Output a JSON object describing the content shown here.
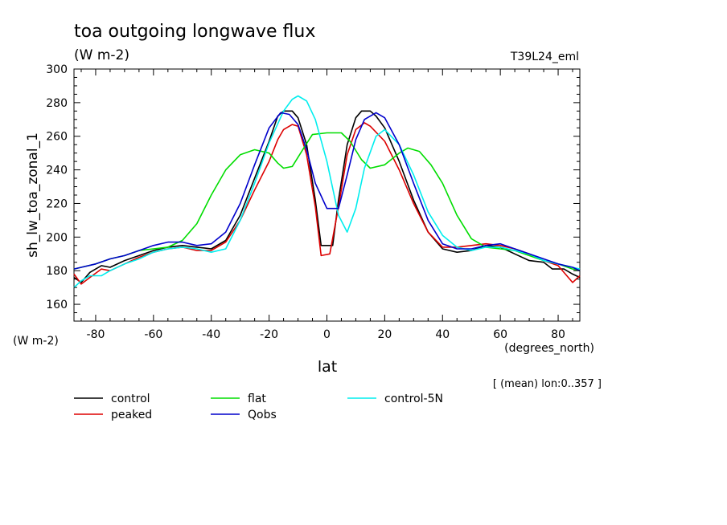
{
  "header": {
    "title": "toa outgoing longwave flux",
    "units": "(W m-2)",
    "experiment": "T39L24_eml"
  },
  "footer": {
    "mean_note": "[ (mean) lon:0..357 ]"
  },
  "chart_data": {
    "type": "line",
    "title": "toa outgoing longwave flux",
    "ylabel": "sh_lw_toa_zonal_1",
    "yunits": "(W m-2)",
    "xlabel": "lat",
    "xunits": "(degrees_north)",
    "xlim": [
      -87.5,
      87.5
    ],
    "ylim": [
      150,
      300
    ],
    "xticks": [
      -80,
      -60,
      -40,
      -20,
      0,
      20,
      40,
      60,
      80
    ],
    "yticks": [
      160,
      180,
      200,
      220,
      240,
      260,
      280,
      300
    ],
    "grid": false,
    "legend_position": "bottom",
    "series": [
      {
        "name": "control",
        "color": "#000000",
        "points": [
          [
            -87.5,
            176
          ],
          [
            -85,
            173
          ],
          [
            -82,
            179
          ],
          [
            -78,
            183
          ],
          [
            -75,
            182
          ],
          [
            -70,
            186
          ],
          [
            -65,
            189
          ],
          [
            -60,
            192
          ],
          [
            -55,
            194
          ],
          [
            -50,
            195
          ],
          [
            -45,
            194
          ],
          [
            -40,
            193
          ],
          [
            -35,
            198
          ],
          [
            -30,
            213
          ],
          [
            -25,
            235
          ],
          [
            -20,
            257
          ],
          [
            -17,
            272
          ],
          [
            -15,
            275
          ],
          [
            -12,
            275
          ],
          [
            -10,
            271
          ],
          [
            -7,
            255
          ],
          [
            -4,
            222
          ],
          [
            -2,
            195
          ],
          [
            2,
            195
          ],
          [
            4,
            222
          ],
          [
            7,
            255
          ],
          [
            10,
            271
          ],
          [
            12,
            275
          ],
          [
            15,
            275
          ],
          [
            17,
            272
          ],
          [
            20,
            265
          ],
          [
            25,
            245
          ],
          [
            30,
            222
          ],
          [
            35,
            203
          ],
          [
            40,
            193
          ],
          [
            45,
            191
          ],
          [
            50,
            192
          ],
          [
            55,
            195
          ],
          [
            60,
            194
          ],
          [
            65,
            190
          ],
          [
            70,
            186
          ],
          [
            75,
            185
          ],
          [
            78,
            181
          ],
          [
            82,
            181
          ],
          [
            85,
            178
          ],
          [
            87.5,
            176
          ]
        ]
      },
      {
        "name": "peaked",
        "color": "#dd0000",
        "points": [
          [
            -87.5,
            178
          ],
          [
            -85,
            172
          ],
          [
            -82,
            176
          ],
          [
            -78,
            181
          ],
          [
            -75,
            180
          ],
          [
            -70,
            184
          ],
          [
            -65,
            188
          ],
          [
            -60,
            191
          ],
          [
            -55,
            193
          ],
          [
            -50,
            194
          ],
          [
            -45,
            192
          ],
          [
            -40,
            192
          ],
          [
            -35,
            197
          ],
          [
            -30,
            210
          ],
          [
            -25,
            228
          ],
          [
            -20,
            245
          ],
          [
            -17,
            258
          ],
          [
            -15,
            264
          ],
          [
            -12,
            267
          ],
          [
            -10,
            266
          ],
          [
            -7,
            249
          ],
          [
            -4,
            218
          ],
          [
            -2,
            189
          ],
          [
            1,
            190
          ],
          [
            4,
            218
          ],
          [
            7,
            249
          ],
          [
            10,
            264
          ],
          [
            13,
            268
          ],
          [
            15,
            266
          ],
          [
            20,
            257
          ],
          [
            25,
            240
          ],
          [
            30,
            220
          ],
          [
            35,
            203
          ],
          [
            40,
            194
          ],
          [
            45,
            194
          ],
          [
            50,
            195
          ],
          [
            55,
            196
          ],
          [
            60,
            195
          ],
          [
            65,
            193
          ],
          [
            70,
            190
          ],
          [
            75,
            186
          ],
          [
            80,
            183
          ],
          [
            85,
            173
          ],
          [
            87.5,
            177
          ]
        ]
      },
      {
        "name": "flat",
        "color": "#00dd00",
        "points": [
          [
            -87.5,
            181
          ],
          [
            -85,
            182
          ],
          [
            -80,
            184
          ],
          [
            -75,
            187
          ],
          [
            -70,
            189
          ],
          [
            -65,
            192
          ],
          [
            -60,
            193
          ],
          [
            -55,
            194
          ],
          [
            -50,
            198
          ],
          [
            -45,
            208
          ],
          [
            -40,
            225
          ],
          [
            -35,
            240
          ],
          [
            -30,
            249
          ],
          [
            -25,
            252
          ],
          [
            -20,
            250
          ],
          [
            -17,
            244
          ],
          [
            -15,
            241
          ],
          [
            -12,
            242
          ],
          [
            -8,
            253
          ],
          [
            -5,
            261
          ],
          [
            0,
            262
          ],
          [
            5,
            262
          ],
          [
            8,
            257
          ],
          [
            12,
            246
          ],
          [
            15,
            241
          ],
          [
            20,
            243
          ],
          [
            25,
            250
          ],
          [
            28,
            253
          ],
          [
            32,
            251
          ],
          [
            36,
            243
          ],
          [
            40,
            232
          ],
          [
            45,
            213
          ],
          [
            50,
            199
          ],
          [
            55,
            194
          ],
          [
            60,
            193
          ],
          [
            65,
            192
          ],
          [
            70,
            189
          ],
          [
            75,
            186
          ],
          [
            80,
            184
          ],
          [
            85,
            181
          ],
          [
            87.5,
            180
          ]
        ]
      },
      {
        "name": "control-5N",
        "color": "#00eeee",
        "points": [
          [
            -87.5,
            170
          ],
          [
            -85,
            174
          ],
          [
            -82,
            177
          ],
          [
            -78,
            177
          ],
          [
            -75,
            180
          ],
          [
            -70,
            184
          ],
          [
            -65,
            187
          ],
          [
            -60,
            191
          ],
          [
            -55,
            193
          ],
          [
            -50,
            194
          ],
          [
            -45,
            193
          ],
          [
            -40,
            191
          ],
          [
            -35,
            193
          ],
          [
            -30,
            210
          ],
          [
            -25,
            232
          ],
          [
            -20,
            256
          ],
          [
            -15,
            275
          ],
          [
            -12,
            282
          ],
          [
            -10,
            284
          ],
          [
            -7,
            281
          ],
          [
            -4,
            270
          ],
          [
            0,
            245
          ],
          [
            4,
            213
          ],
          [
            7,
            203
          ],
          [
            10,
            217
          ],
          [
            13,
            241
          ],
          [
            17,
            260
          ],
          [
            20,
            264
          ],
          [
            25,
            255
          ],
          [
            30,
            237
          ],
          [
            35,
            215
          ],
          [
            40,
            201
          ],
          [
            45,
            194
          ],
          [
            50,
            192
          ],
          [
            55,
            194
          ],
          [
            60,
            194
          ],
          [
            65,
            192
          ],
          [
            70,
            190
          ],
          [
            75,
            186
          ],
          [
            80,
            184
          ],
          [
            85,
            182
          ],
          [
            87.5,
            181
          ]
        ]
      },
      {
        "name": "Qobs",
        "color": "#0000cc",
        "points": [
          [
            -87.5,
            181
          ],
          [
            -85,
            182
          ],
          [
            -80,
            184
          ],
          [
            -75,
            187
          ],
          [
            -70,
            189
          ],
          [
            -65,
            192
          ],
          [
            -60,
            195
          ],
          [
            -55,
            197
          ],
          [
            -50,
            197
          ],
          [
            -45,
            195
          ],
          [
            -40,
            196
          ],
          [
            -35,
            203
          ],
          [
            -30,
            220
          ],
          [
            -25,
            243
          ],
          [
            -20,
            265
          ],
          [
            -16,
            274
          ],
          [
            -13,
            273
          ],
          [
            -10,
            267
          ],
          [
            -7,
            252
          ],
          [
            -4,
            232
          ],
          [
            0,
            217
          ],
          [
            4,
            217
          ],
          [
            7,
            237
          ],
          [
            10,
            258
          ],
          [
            13,
            270
          ],
          [
            17,
            274
          ],
          [
            20,
            271
          ],
          [
            25,
            255
          ],
          [
            30,
            232
          ],
          [
            35,
            210
          ],
          [
            40,
            196
          ],
          [
            45,
            193
          ],
          [
            50,
            193
          ],
          [
            55,
            195
          ],
          [
            60,
            196
          ],
          [
            65,
            193
          ],
          [
            70,
            190
          ],
          [
            75,
            187
          ],
          [
            80,
            184
          ],
          [
            85,
            182
          ],
          [
            87.5,
            180
          ]
        ]
      }
    ]
  }
}
